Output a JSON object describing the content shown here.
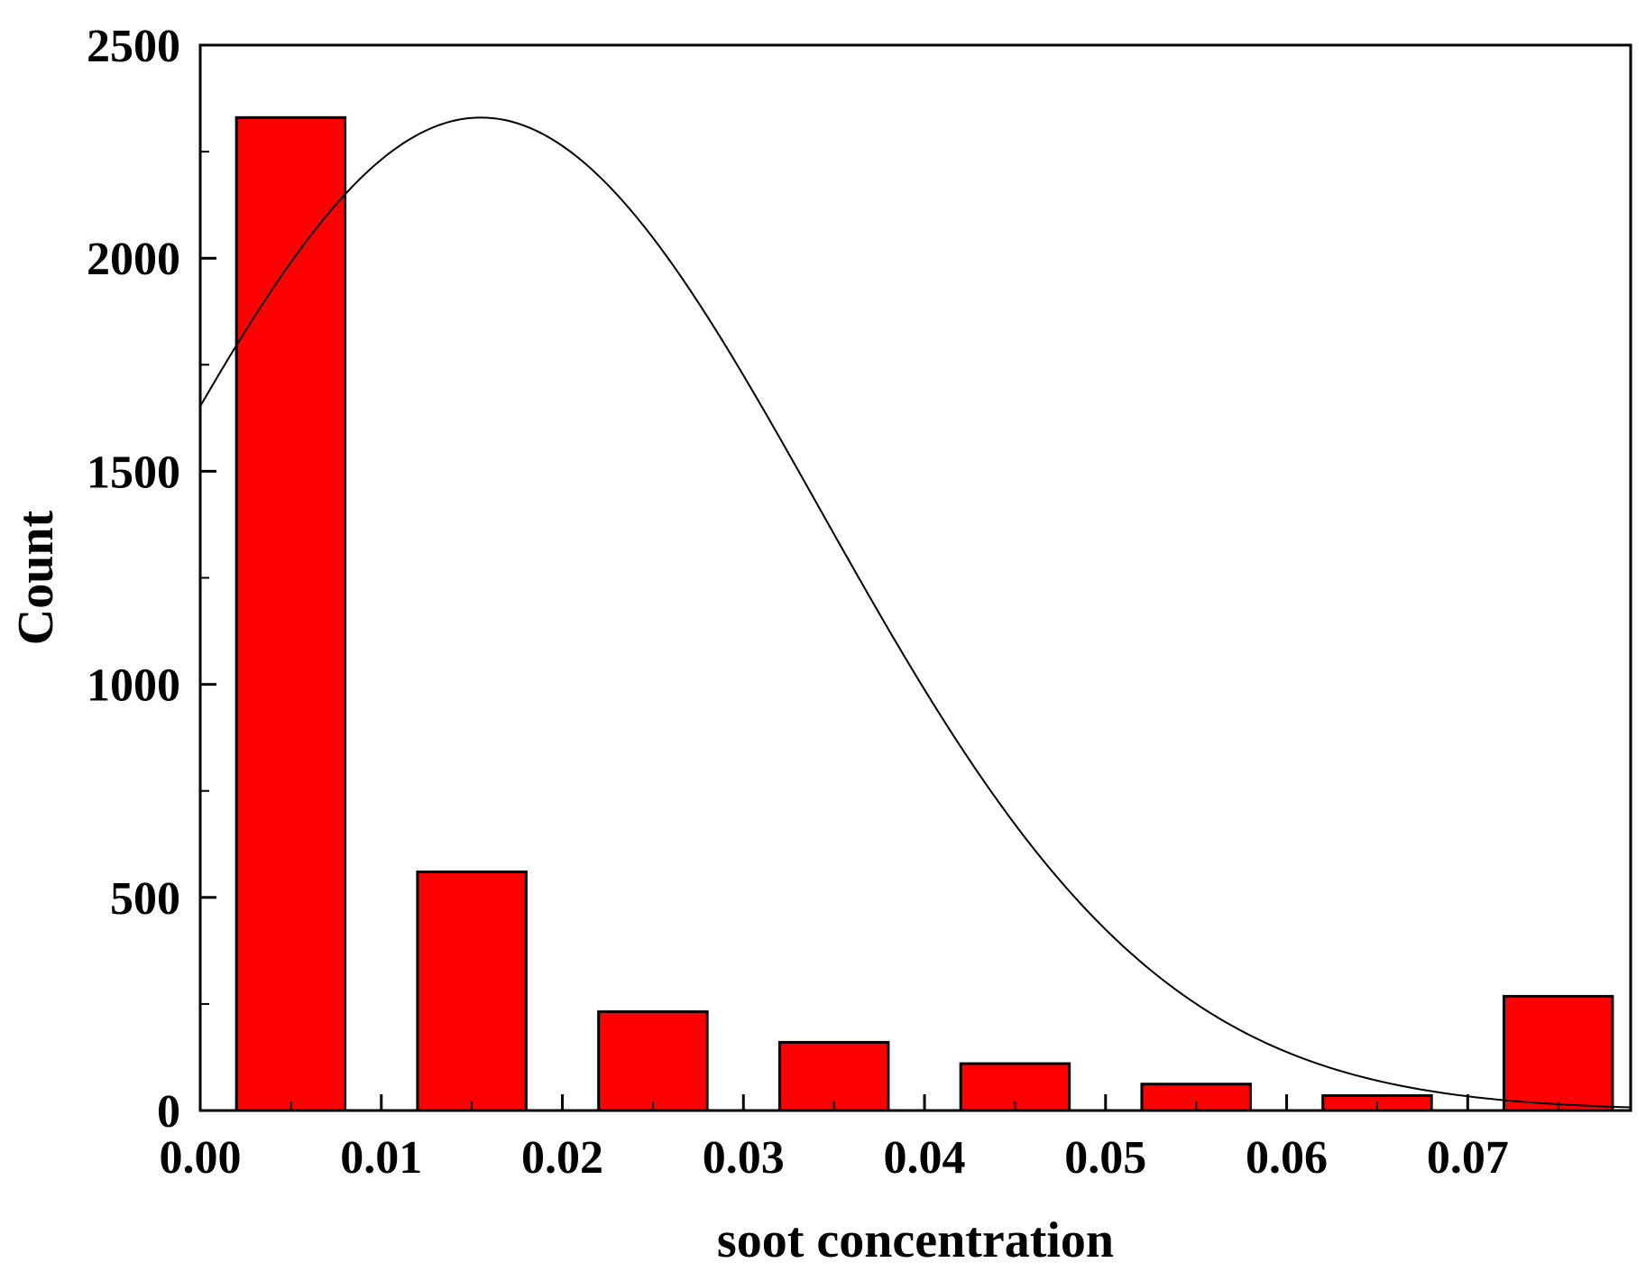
{
  "chart_data": {
    "type": "bar",
    "title": "",
    "xlabel": "soot concentration",
    "ylabel": "Count",
    "xlim": [
      0,
      0.079
    ],
    "ylim": [
      0,
      2500
    ],
    "x_ticks": [
      0,
      0.01,
      0.02,
      0.03,
      0.04,
      0.05,
      0.06,
      0.07
    ],
    "x_tick_labels": [
      "0.00",
      "0.01",
      "0.02",
      "0.03",
      "0.04",
      "0.05",
      "0.06",
      "0.07"
    ],
    "y_ticks": [
      0,
      500,
      1000,
      1500,
      2000,
      2500
    ],
    "y_tick_labels": [
      "0",
      "500",
      "1000",
      "1500",
      "2000",
      "2500"
    ],
    "bar_width": 0.006,
    "bars": [
      {
        "center": 0.005,
        "value": 2330
      },
      {
        "center": 0.015,
        "value": 560
      },
      {
        "center": 0.025,
        "value": 232
      },
      {
        "center": 0.035,
        "value": 160
      },
      {
        "center": 0.045,
        "value": 110
      },
      {
        "center": 0.055,
        "value": 62
      },
      {
        "center": 0.065,
        "value": 35
      },
      {
        "center": 0.075,
        "value": 268
      }
    ],
    "fit_curve": {
      "type": "normal",
      "mean": 0.0155,
      "sd": 0.0187,
      "peak": 2330
    },
    "grid": false,
    "legend": "none",
    "colors": {
      "bar_fill": "#ff0000",
      "bar_stroke": "#000000",
      "curve": "#000000"
    }
  }
}
